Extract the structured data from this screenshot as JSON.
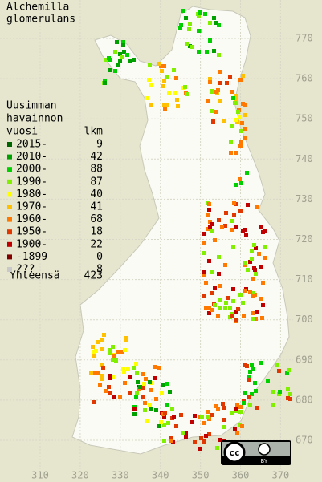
{
  "title": [
    "Alchemilla",
    "glomerulans"
  ],
  "legend": {
    "heading": [
      "Uusimman",
      "havainnon",
      "vuosi"
    ],
    "count_heading": "lkm",
    "entries": [
      {
        "label": "2015-",
        "count": "9",
        "color": "#006400"
      },
      {
        "label": "2010-",
        "count": "42",
        "color": "#00a000"
      },
      {
        "label": "2000-",
        "count": "88",
        "color": "#00d000"
      },
      {
        "label": "1990-",
        "count": "87",
        "color": "#80f000"
      },
      {
        "label": "1980-",
        "count": "40",
        "color": "#ffff00"
      },
      {
        "label": "1970-",
        "count": "41",
        "color": "#ffc000"
      },
      {
        "label": "1960-",
        "count": "68",
        "color": "#ff7800"
      },
      {
        "label": "1950-",
        "count": "18",
        "color": "#e03800"
      },
      {
        "label": "1900-",
        "count": "22",
        "color": "#c00000"
      },
      {
        "label": "-1899",
        "count": "0",
        "color": "#800000"
      },
      {
        "label": "???",
        "count": "8",
        "color": "#c8c8c8"
      }
    ],
    "total_label": "Yhteensä",
    "total": "423"
  },
  "grid": {
    "y_labels": [
      "770",
      "760",
      "750",
      "740",
      "730",
      "720",
      "710",
      "700",
      "690",
      "680",
      "670"
    ],
    "x_labels": [
      "310",
      "320",
      "330",
      "340",
      "350",
      "360",
      "370"
    ]
  },
  "license": {
    "cc": "cc",
    "by": "BY"
  }
}
